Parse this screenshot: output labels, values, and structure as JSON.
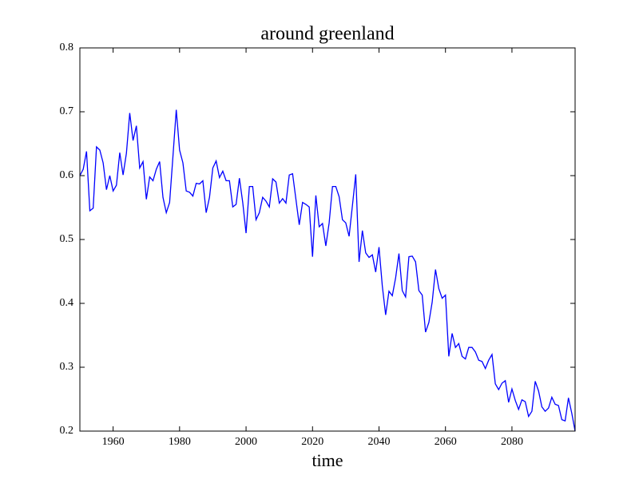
{
  "chart_data": {
    "type": "line",
    "title": "around greenland",
    "x_label": "time",
    "x": [
      1950,
      1951,
      1952,
      1953,
      1954,
      1955,
      1956,
      1957,
      1958,
      1959,
      1960,
      1961,
      1962,
      1963,
      1964,
      1965,
      1966,
      1967,
      1968,
      1969,
      1970,
      1971,
      1972,
      1973,
      1974,
      1975,
      1976,
      1977,
      1978,
      1979,
      1980,
      1981,
      1982,
      1983,
      1984,
      1985,
      1986,
      1987,
      1988,
      1989,
      1990,
      1991,
      1992,
      1993,
      1994,
      1995,
      1996,
      1997,
      1998,
      1999,
      2000,
      2001,
      2002,
      2003,
      2004,
      2005,
      2006,
      2007,
      2008,
      2009,
      2010,
      2011,
      2012,
      2013,
      2014,
      2015,
      2016,
      2017,
      2018,
      2019,
      2020,
      2021,
      2022,
      2023,
      2024,
      2025,
      2026,
      2027,
      2028,
      2029,
      2030,
      2031,
      2032,
      2033,
      2034,
      2035,
      2036,
      2037,
      2038,
      2039,
      2040,
      2041,
      2042,
      2043,
      2044,
      2045,
      2046,
      2047,
      2048,
      2049,
      2050,
      2051,
      2052,
      2053,
      2054,
      2055,
      2056,
      2057,
      2058,
      2059,
      2060,
      2061,
      2062,
      2063,
      2064,
      2065,
      2066,
      2067,
      2068,
      2069,
      2070,
      2071,
      2072,
      2073,
      2074,
      2075,
      2076,
      2077,
      2078,
      2079,
      2080,
      2081,
      2082,
      2083,
      2084,
      2085,
      2086,
      2087,
      2088,
      2089,
      2090,
      2091,
      2092,
      2093,
      2094,
      2095,
      2096,
      2097,
      2098,
      2099
    ],
    "series": [
      {
        "color": "#0000ff",
        "values": [
          0.6,
          0.61,
          0.638,
          0.545,
          0.549,
          0.645,
          0.64,
          0.62,
          0.578,
          0.6,
          0.576,
          0.585,
          0.636,
          0.601,
          0.635,
          0.698,
          0.655,
          0.678,
          0.612,
          0.622,
          0.563,
          0.598,
          0.592,
          0.61,
          0.622,
          0.566,
          0.542,
          0.558,
          0.63,
          0.703,
          0.64,
          0.62,
          0.576,
          0.574,
          0.568,
          0.588,
          0.587,
          0.592,
          0.542,
          0.566,
          0.612,
          0.623,
          0.597,
          0.607,
          0.592,
          0.592,
          0.551,
          0.555,
          0.596,
          0.558,
          0.51,
          0.583,
          0.583,
          0.531,
          0.542,
          0.566,
          0.56,
          0.551,
          0.595,
          0.59,
          0.557,
          0.564,
          0.557,
          0.601,
          0.603,
          0.563,
          0.523,
          0.558,
          0.555,
          0.551,
          0.473,
          0.569,
          0.52,
          0.525,
          0.49,
          0.526,
          0.583,
          0.583,
          0.567,
          0.531,
          0.526,
          0.505,
          0.553,
          0.602,
          0.465,
          0.514,
          0.479,
          0.472,
          0.476,
          0.449,
          0.488,
          0.427,
          0.382,
          0.419,
          0.412,
          0.44,
          0.478,
          0.42,
          0.41,
          0.473,
          0.474,
          0.465,
          0.42,
          0.413,
          0.355,
          0.37,
          0.402,
          0.453,
          0.423,
          0.408,
          0.413,
          0.317,
          0.353,
          0.331,
          0.337,
          0.317,
          0.313,
          0.331,
          0.331,
          0.324,
          0.311,
          0.309,
          0.298,
          0.311,
          0.32,
          0.274,
          0.265,
          0.275,
          0.279,
          0.245,
          0.266,
          0.248,
          0.234,
          0.249,
          0.246,
          0.223,
          0.231,
          0.278,
          0.263,
          0.238,
          0.231,
          0.236,
          0.253,
          0.242,
          0.24,
          0.218,
          0.216,
          0.252,
          0.228,
          0.2
        ]
      }
    ],
    "xlim": [
      1950,
      2099
    ],
    "ylim": [
      0.2,
      0.8
    ],
    "xticks": [
      1960,
      1980,
      2000,
      2020,
      2040,
      2060,
      2080
    ],
    "yticks": [
      0.2,
      0.3,
      0.4,
      0.5,
      0.6,
      0.7,
      0.8
    ]
  }
}
